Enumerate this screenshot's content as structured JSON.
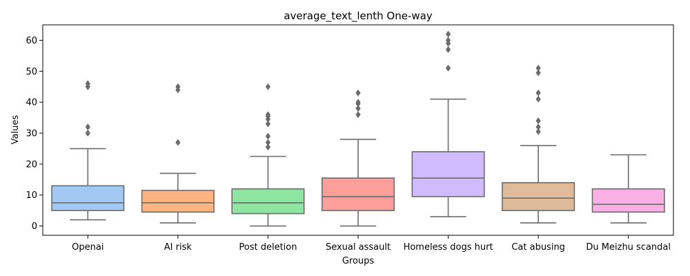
{
  "chart_data": {
    "type": "box",
    "title": "average_text_lenth One-way",
    "xlabel": "Groups",
    "ylabel": "Values",
    "ylim": [
      -3,
      65
    ],
    "yticks": [
      0,
      10,
      20,
      30,
      40,
      50,
      60
    ],
    "grid": false,
    "series": [
      {
        "category": "Openai",
        "color": "#a1c9f4",
        "whisker_low": 2,
        "q1": 5,
        "median": 7.5,
        "q3": 13,
        "whisker_high": 25,
        "outliers": [
          30,
          32,
          45,
          46
        ]
      },
      {
        "category": "AI risk",
        "color": "#ffb482",
        "whisker_low": 1,
        "q1": 4.5,
        "median": 7.5,
        "q3": 11.5,
        "whisker_high": 17,
        "outliers": [
          27,
          44,
          45
        ]
      },
      {
        "category": "Post deletion",
        "color": "#8de5a1",
        "whisker_low": 0,
        "q1": 4,
        "median": 7.5,
        "q3": 12,
        "whisker_high": 22.5,
        "outliers": [
          25.5,
          27,
          29,
          33,
          34.5,
          35.5,
          36,
          45
        ]
      },
      {
        "category": "Sexual assault",
        "color": "#ff9f9b",
        "whisker_low": 0,
        "q1": 5,
        "median": 9.5,
        "q3": 15.5,
        "whisker_high": 28,
        "outliers": [
          36,
          38,
          39.5,
          40,
          43
        ]
      },
      {
        "category": "Homeless dogs hurt",
        "color": "#d0bbff",
        "whisker_low": 3,
        "q1": 9.5,
        "median": 15.5,
        "q3": 24,
        "whisker_high": 41,
        "outliers": [
          51,
          57,
          59,
          60,
          62
        ]
      },
      {
        "category": "Cat abusing",
        "color": "#debb9b",
        "whisker_low": 1,
        "q1": 5,
        "median": 9,
        "q3": 14,
        "whisker_high": 26,
        "outliers": [
          30.5,
          32,
          34,
          41,
          43,
          49.5,
          51
        ]
      },
      {
        "category": "Du Meizhu scandal",
        "color": "#fab0e4",
        "whisker_low": 1,
        "q1": 4.5,
        "median": 7,
        "q3": 12,
        "whisker_high": 23,
        "outliers": []
      }
    ]
  }
}
